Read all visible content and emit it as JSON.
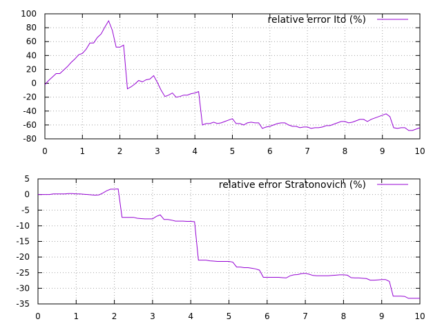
{
  "chart_data": [
    {
      "type": "line",
      "title": "",
      "xlabel": "",
      "ylabel": "",
      "xlim": [
        0,
        10
      ],
      "ylim": [
        -80,
        100
      ],
      "xticks": [
        0,
        1,
        2,
        3,
        4,
        5,
        6,
        7,
        8,
        9,
        10
      ],
      "yticks": [
        -80,
        -60,
        -40,
        -20,
        0,
        20,
        40,
        60,
        80,
        100
      ],
      "grid": true,
      "legend_position": "top-right",
      "series": [
        {
          "name": "relative error Ito (%)",
          "color": "#9400d3",
          "x": [
            0,
            0.1,
            0.2,
            0.3,
            0.4,
            0.5,
            0.6,
            0.7,
            0.8,
            0.9,
            1.0,
            1.1,
            1.2,
            1.3,
            1.4,
            1.5,
            1.6,
            1.7,
            1.8,
            1.9,
            2.0,
            2.1,
            2.2,
            2.3,
            2.4,
            2.5,
            2.6,
            2.7,
            2.8,
            2.9,
            3.0,
            3.1,
            3.2,
            3.3,
            3.4,
            3.5,
            3.6,
            3.7,
            3.8,
            3.9,
            4.0,
            4.1,
            4.2,
            4.3,
            4.4,
            4.5,
            4.6,
            4.7,
            4.8,
            4.9,
            5.0,
            5.1,
            5.2,
            5.3,
            5.4,
            5.5,
            5.6,
            5.7,
            5.8,
            5.9,
            6.0,
            6.1,
            6.2,
            6.3,
            6.4,
            6.5,
            6.6,
            6.7,
            6.8,
            6.9,
            7.0,
            7.1,
            7.2,
            7.3,
            7.4,
            7.5,
            7.6,
            7.7,
            7.8,
            7.9,
            8.0,
            8.1,
            8.2,
            8.3,
            8.4,
            8.5,
            8.6,
            8.7,
            8.8,
            8.9,
            9.0,
            9.1,
            9.2,
            9.3,
            9.4,
            9.5,
            9.6,
            9.7,
            9.8,
            9.9,
            10.0
          ],
          "y": [
            -2,
            4,
            9,
            14,
            14,
            19,
            24,
            30,
            35,
            41,
            43,
            49,
            58,
            58,
            66,
            71,
            81,
            90,
            76,
            52,
            52,
            55,
            -8,
            -5,
            -1,
            4,
            2,
            5,
            6,
            11,
            1,
            -10,
            -19,
            -17,
            -14,
            -20,
            -19,
            -17,
            -17,
            -15,
            -14,
            -12,
            -60,
            -58,
            -58,
            -56,
            -58,
            -57,
            -55,
            -53,
            -51,
            -58,
            -58,
            -60,
            -57,
            -56,
            -57,
            -57,
            -65,
            -63,
            -62,
            -60,
            -58,
            -57,
            -57,
            -60,
            -62,
            -62,
            -64,
            -63,
            -63,
            -65,
            -64,
            -64,
            -63,
            -61,
            -61,
            -59,
            -57,
            -55,
            -55,
            -57,
            -56,
            -54,
            -52,
            -52,
            -55,
            -52,
            -50,
            -48,
            -46,
            -44,
            -48,
            -64,
            -65,
            -64,
            -64,
            -68,
            -68,
            -66,
            -64
          ]
        }
      ]
    },
    {
      "type": "line",
      "title": "",
      "xlabel": "",
      "ylabel": "",
      "xlim": [
        0,
        10
      ],
      "ylim": [
        -35,
        5
      ],
      "xticks": [
        0,
        1,
        2,
        3,
        4,
        5,
        6,
        7,
        8,
        9,
        10
      ],
      "yticks": [
        -35,
        -30,
        -25,
        -20,
        -15,
        -10,
        -5,
        0,
        5
      ],
      "grid": true,
      "legend_position": "top-right",
      "series": [
        {
          "name": "relative error Stratonovich (%)",
          "color": "#9400d3",
          "x": [
            0,
            0.1,
            0.2,
            0.3,
            0.4,
            0.5,
            0.6,
            0.7,
            0.8,
            0.9,
            1.0,
            1.1,
            1.2,
            1.3,
            1.4,
            1.5,
            1.6,
            1.7,
            1.8,
            1.9,
            2.0,
            2.1,
            2.2,
            2.3,
            2.4,
            2.5,
            2.6,
            2.7,
            2.8,
            2.9,
            3.0,
            3.1,
            3.2,
            3.3,
            3.4,
            3.5,
            3.6,
            3.7,
            3.8,
            3.9,
            4.0,
            4.1,
            4.2,
            4.3,
            4.4,
            4.5,
            4.6,
            4.7,
            4.8,
            4.9,
            5.0,
            5.1,
            5.2,
            5.3,
            5.4,
            5.5,
            5.6,
            5.7,
            5.8,
            5.9,
            6.0,
            6.1,
            6.2,
            6.3,
            6.4,
            6.5,
            6.6,
            6.7,
            6.8,
            6.9,
            7.0,
            7.1,
            7.2,
            7.3,
            7.4,
            7.5,
            7.6,
            7.7,
            7.8,
            7.9,
            8.0,
            8.1,
            8.2,
            8.3,
            8.4,
            8.5,
            8.6,
            8.7,
            8.8,
            8.9,
            9.0,
            9.1,
            9.2,
            9.3,
            9.4,
            9.5,
            9.6,
            9.7,
            9.8,
            9.9,
            10.0
          ],
          "y": [
            0,
            0,
            0,
            0,
            0.2,
            0.2,
            0.2,
            0.2,
            0.3,
            0.3,
            0.2,
            0.2,
            0.1,
            0,
            -0.1,
            -0.2,
            -0.1,
            0.5,
            1.2,
            1.7,
            1.7,
            1.8,
            -7.3,
            -7.3,
            -7.3,
            -7.3,
            -7.6,
            -7.7,
            -7.8,
            -7.8,
            -7.8,
            -7.0,
            -6.5,
            -8.0,
            -8.0,
            -8.2,
            -8.5,
            -8.5,
            -8.5,
            -8.6,
            -8.6,
            -8.7,
            -21.0,
            -21.0,
            -21.0,
            -21.2,
            -21.3,
            -21.4,
            -21.4,
            -21.4,
            -21.4,
            -21.6,
            -23.2,
            -23.2,
            -23.4,
            -23.4,
            -23.6,
            -23.8,
            -24.2,
            -26.5,
            -26.5,
            -26.5,
            -26.5,
            -26.5,
            -26.6,
            -26.7,
            -26.0,
            -25.7,
            -25.6,
            -25.3,
            -25.2,
            -25.5,
            -25.9,
            -26.0,
            -26.0,
            -26.0,
            -26.0,
            -25.9,
            -25.8,
            -25.7,
            -25.7,
            -25.8,
            -26.6,
            -26.7,
            -26.7,
            -26.8,
            -26.9,
            -27.4,
            -27.4,
            -27.3,
            -27.2,
            -27.2,
            -27.8,
            -32.5,
            -32.5,
            -32.5,
            -32.6,
            -33.2,
            -33.2,
            -33.2,
            -33.2
          ]
        }
      ]
    }
  ]
}
